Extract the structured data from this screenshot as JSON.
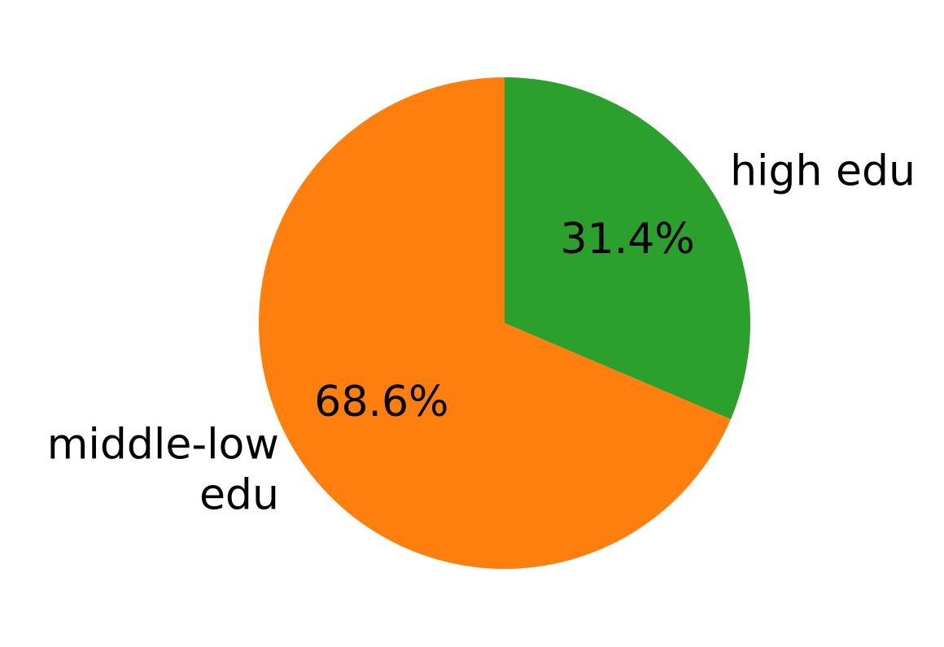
{
  "chart_data": {
    "type": "pie",
    "title": "",
    "slices": [
      {
        "label_lines": [
          "high edu"
        ],
        "value": 31.4,
        "pct_label": "31.4%",
        "color": "#2ca02c"
      },
      {
        "label_lines": [
          "middle-low",
          "edu"
        ],
        "value": 68.6,
        "pct_label": "68.6%",
        "color": "#ff7f0e"
      }
    ],
    "start_angle_deg": 90,
    "direction": "clockwise",
    "legend": "none"
  }
}
